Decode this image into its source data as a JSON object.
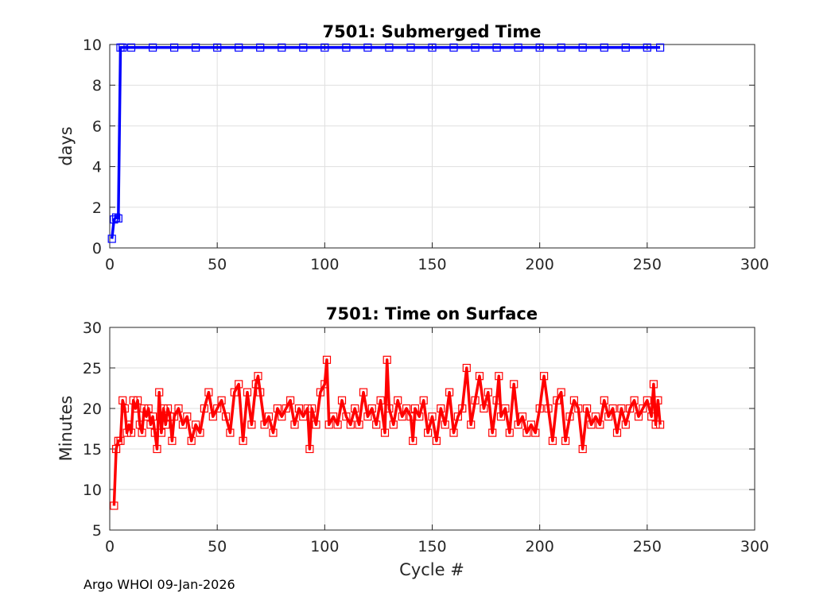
{
  "footer": "Argo WHOI 09-Jan-2026",
  "chart_data": [
    {
      "type": "line",
      "title": "7501: Submerged Time",
      "xlabel": "",
      "ylabel": "days",
      "xlim": [
        0,
        300
      ],
      "ylim": [
        0,
        10
      ],
      "xticks": [
        "0",
        "50",
        "100",
        "150",
        "200",
        "250",
        "300"
      ],
      "yticks": [
        "0",
        "2",
        "4",
        "6",
        "8",
        "10"
      ],
      "grid": true,
      "color": "#0000ff",
      "marker": "square",
      "x": [
        1,
        2,
        3,
        4,
        5,
        6,
        10,
        20,
        30,
        40,
        50,
        60,
        70,
        80,
        90,
        100,
        110,
        120,
        130,
        140,
        150,
        160,
        170,
        180,
        190,
        200,
        210,
        220,
        230,
        240,
        250,
        256
      ],
      "y": [
        0.45,
        1.4,
        1.5,
        1.45,
        9.85,
        9.85,
        9.85,
        9.85,
        9.85,
        9.85,
        9.85,
        9.85,
        9.85,
        9.85,
        9.85,
        9.85,
        9.85,
        9.85,
        9.85,
        9.85,
        9.85,
        9.85,
        9.85,
        9.85,
        9.85,
        9.85,
        9.85,
        9.85,
        9.85,
        9.85,
        9.85,
        9.85
      ]
    },
    {
      "type": "line",
      "title": "7501: Time on Surface",
      "xlabel": "Cycle #",
      "ylabel": "Minutes",
      "xlim": [
        0,
        300
      ],
      "ylim": [
        5,
        30
      ],
      "xticks": [
        "0",
        "50",
        "100",
        "150",
        "200",
        "250",
        "300"
      ],
      "yticks": [
        "5",
        "10",
        "15",
        "20",
        "25",
        "30"
      ],
      "grid": true,
      "color": "#ff0000",
      "marker": "square",
      "x": [
        2,
        3,
        4,
        5,
        6,
        7,
        8,
        9,
        10,
        11,
        12,
        13,
        14,
        15,
        16,
        17,
        18,
        19,
        20,
        21,
        22,
        23,
        24,
        25,
        26,
        27,
        28,
        29,
        30,
        32,
        34,
        36,
        38,
        40,
        42,
        44,
        46,
        48,
        50,
        52,
        54,
        56,
        58,
        60,
        62,
        64,
        66,
        68,
        69,
        70,
        72,
        74,
        76,
        78,
        80,
        82,
        84,
        86,
        88,
        90,
        92,
        93,
        94,
        96,
        98,
        100,
        101,
        102,
        104,
        106,
        108,
        110,
        112,
        114,
        116,
        118,
        120,
        122,
        124,
        126,
        128,
        129,
        130,
        132,
        134,
        136,
        138,
        140,
        141,
        142,
        144,
        146,
        148,
        150,
        152,
        154,
        156,
        158,
        160,
        162,
        164,
        166,
        168,
        170,
        172,
        174,
        176,
        178,
        180,
        181,
        182,
        184,
        186,
        188,
        190,
        192,
        194,
        196,
        198,
        200,
        202,
        204,
        206,
        208,
        210,
        212,
        214,
        216,
        218,
        220,
        222,
        224,
        226,
        228,
        230,
        232,
        234,
        236,
        238,
        240,
        242,
        244,
        246,
        248,
        250,
        252,
        253,
        254,
        255,
        256
      ],
      "y": [
        8,
        15,
        16,
        16,
        21,
        20,
        17,
        18,
        17,
        21,
        20,
        21,
        18,
        17,
        20,
        19,
        20,
        18,
        19,
        17,
        15,
        22,
        17,
        20,
        18,
        20,
        19,
        16,
        19,
        20,
        18,
        19,
        16,
        18,
        17,
        20,
        22,
        19,
        20,
        21,
        19,
        17,
        22,
        23,
        16,
        22,
        18,
        23,
        24,
        22,
        18,
        19,
        17,
        20,
        19,
        20,
        21,
        18,
        20,
        19,
        20,
        15,
        20,
        18,
        22,
        23,
        26,
        18,
        19,
        18,
        21,
        19,
        18,
        20,
        18,
        22,
        19,
        20,
        18,
        21,
        17,
        26,
        20,
        18,
        21,
        19,
        20,
        19,
        16,
        20,
        19,
        21,
        17,
        19,
        16,
        20,
        18,
        22,
        17,
        19,
        20,
        25,
        18,
        21,
        24,
        20,
        22,
        17,
        21,
        24,
        19,
        20,
        17,
        23,
        18,
        19,
        17,
        18,
        17,
        20,
        24,
        20,
        16,
        21,
        22,
        16,
        19,
        21,
        20,
        15,
        20,
        18,
        19,
        18,
        21,
        19,
        20,
        17,
        20,
        18,
        20,
        21,
        19,
        20,
        21,
        19,
        23,
        18,
        21,
        18
      ]
    }
  ]
}
